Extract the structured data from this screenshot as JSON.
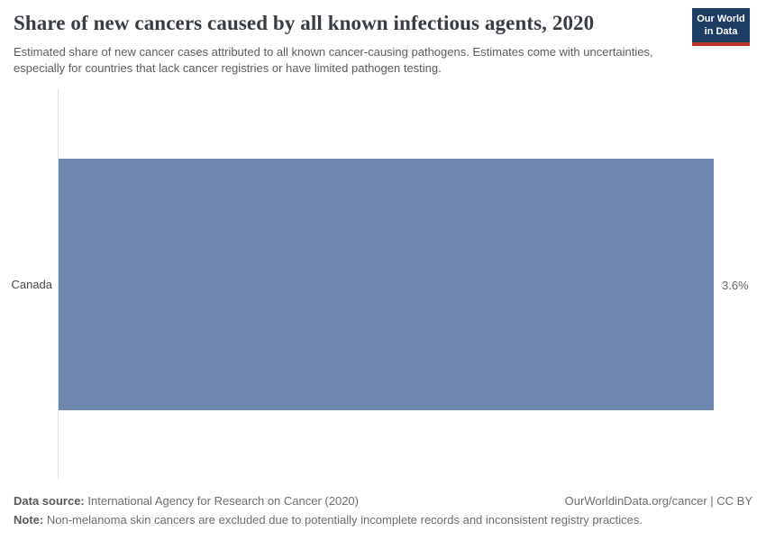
{
  "header": {
    "title": "Share of new cancers caused by all known infectious agents, 2020",
    "subtitle": "Estimated share of new cancer cases attributed to all known cancer-causing pathogens. Estimates come with uncertainties, especially for countries that lack cancer registries or have limited pathogen testing.",
    "logo": {
      "line1": "Our World",
      "line2": "in Data"
    }
  },
  "chart_data": {
    "type": "bar",
    "orientation": "horizontal",
    "title": "Share of new cancers caused by all known infectious agents, 2020",
    "categories": [
      "Canada"
    ],
    "values": [
      3.6
    ],
    "value_labels": [
      "3.6%"
    ],
    "xlabel": "",
    "ylabel": "",
    "xlim": [
      0,
      3.6
    ],
    "grid": false,
    "legend": false,
    "bar_color": "#6d87ae"
  },
  "colors": {
    "bar": "#6d87ae",
    "logo_background": "#1d3d63",
    "logo_accent": "#b83728",
    "axis_line": "#dde1e7"
  },
  "footer": {
    "data_source_label": "Data source:",
    "data_source_value": "International Agency for Research on Cancer (2020)",
    "link": "OurWorldinData.org/cancer | CC BY",
    "note_label": "Note:",
    "note_value": "Non-melanoma skin cancers are excluded due to potentially incomplete records and inconsistent registry practices."
  }
}
